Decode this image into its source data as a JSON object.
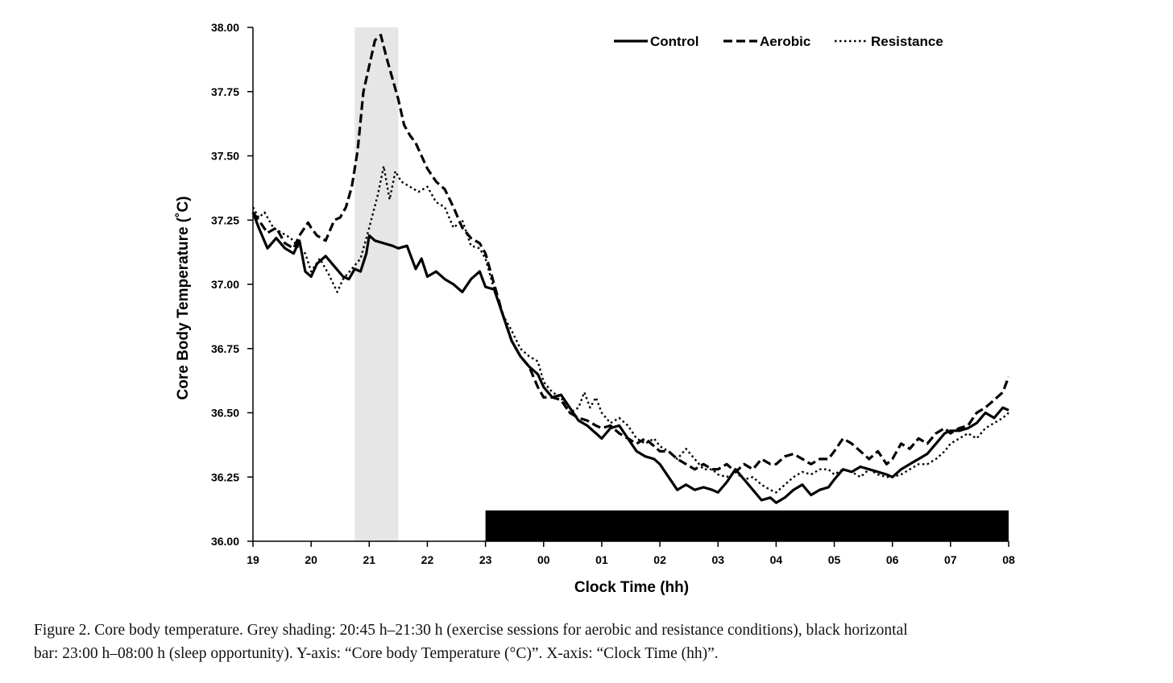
{
  "chart_data": {
    "type": "line",
    "title": "",
    "xlabel": "Clock Time (hh)",
    "ylabel": "Core Body Temperature (˚C)",
    "ylim": [
      36.0,
      38.0
    ],
    "yticks": [
      "38.00",
      "37.75",
      "37.50",
      "37.25",
      "37.00",
      "36.75",
      "36.50",
      "36.25",
      "36.00"
    ],
    "xlim": [
      19,
      32
    ],
    "xticks": [
      "19",
      "20",
      "21",
      "22",
      "23",
      "00",
      "01",
      "02",
      "03",
      "04",
      "05",
      "06",
      "07",
      "08"
    ],
    "grid": false,
    "legend_position": "top-right",
    "shaded_region": {
      "x_start": 20.75,
      "x_end": 21.5,
      "color": "#e6e6e6"
    },
    "sleep_bar": {
      "x_start": 23.0,
      "x_end": 32.0,
      "y_top": 36.12,
      "color": "#000000"
    },
    "series": [
      {
        "name": "Control",
        "style": "solid",
        "x": [
          19.0,
          19.1,
          19.25,
          19.4,
          19.55,
          19.7,
          19.8,
          19.9,
          20.0,
          20.1,
          20.25,
          20.4,
          20.55,
          20.65,
          20.75,
          20.85,
          20.95,
          21.0,
          21.1,
          21.25,
          21.4,
          21.5,
          21.65,
          21.8,
          21.9,
          22.0,
          22.15,
          22.3,
          22.45,
          22.6,
          22.75,
          22.9,
          23.0,
          23.15,
          23.3,
          23.45,
          23.6,
          23.75,
          23.9,
          24.0,
          24.15,
          24.3,
          24.45,
          24.6,
          24.75,
          24.9,
          25.0,
          25.15,
          25.3,
          25.45,
          25.6,
          25.75,
          25.9,
          26.0,
          26.15,
          26.3,
          26.45,
          26.6,
          26.75,
          26.9,
          27.0,
          27.15,
          27.3,
          27.45,
          27.6,
          27.75,
          27.9,
          28.0,
          28.15,
          28.3,
          28.45,
          28.6,
          28.75,
          28.9,
          29.0,
          29.15,
          29.3,
          29.45,
          29.6,
          29.75,
          29.9,
          30.0,
          30.15,
          30.3,
          30.45,
          30.6,
          30.75,
          30.9,
          31.0,
          31.15,
          31.3,
          31.45,
          31.6,
          31.75,
          31.9,
          32.0
        ],
        "values": [
          37.28,
          37.22,
          37.14,
          37.18,
          37.14,
          37.12,
          37.17,
          37.05,
          37.03,
          37.08,
          37.11,
          37.07,
          37.03,
          37.02,
          37.06,
          37.05,
          37.12,
          37.19,
          37.17,
          37.16,
          37.15,
          37.14,
          37.15,
          37.06,
          37.1,
          37.03,
          37.05,
          37.02,
          37.0,
          36.97,
          37.02,
          37.05,
          36.99,
          36.98,
          36.88,
          36.78,
          36.72,
          36.68,
          36.65,
          36.6,
          36.56,
          36.57,
          36.52,
          36.47,
          36.45,
          36.42,
          36.4,
          36.44,
          36.45,
          36.4,
          36.35,
          36.33,
          36.32,
          36.3,
          36.25,
          36.2,
          36.22,
          36.2,
          36.21,
          36.2,
          36.19,
          36.23,
          36.28,
          36.24,
          36.2,
          36.16,
          36.17,
          36.15,
          36.17,
          36.2,
          36.22,
          36.18,
          36.2,
          36.21,
          36.24,
          36.28,
          36.27,
          36.29,
          36.28,
          36.27,
          36.26,
          36.25,
          36.28,
          36.3,
          36.32,
          36.34,
          36.38,
          36.42,
          36.43,
          36.43,
          36.44,
          36.46,
          36.5,
          36.48,
          36.52,
          36.51
        ]
      },
      {
        "name": "Aerobic",
        "style": "dashed",
        "x": [
          19.0,
          19.1,
          19.25,
          19.4,
          19.55,
          19.7,
          19.8,
          19.95,
          20.0,
          20.1,
          20.25,
          20.4,
          20.5,
          20.6,
          20.7,
          20.8,
          20.9,
          21.0,
          21.1,
          21.2,
          21.3,
          21.4,
          21.5,
          21.6,
          21.7,
          21.8,
          21.9,
          22.0,
          22.15,
          22.3,
          22.45,
          22.6,
          22.75,
          22.9,
          23.0,
          23.15,
          23.3,
          23.45,
          23.6,
          23.75,
          23.9,
          24.0,
          24.15,
          24.3,
          24.45,
          24.6,
          24.75,
          24.9,
          25.0,
          25.15,
          25.3,
          25.45,
          25.6,
          25.75,
          25.9,
          26.0,
          26.15,
          26.3,
          26.45,
          26.6,
          26.75,
          26.9,
          27.0,
          27.15,
          27.3,
          27.45,
          27.6,
          27.75,
          27.9,
          28.0,
          28.15,
          28.3,
          28.45,
          28.6,
          28.75,
          28.9,
          29.0,
          29.15,
          29.3,
          29.45,
          29.6,
          29.75,
          29.9,
          30.0,
          30.15,
          30.3,
          30.45,
          30.6,
          30.75,
          30.9,
          31.0,
          31.15,
          31.3,
          31.45,
          31.6,
          31.75,
          31.9,
          32.0
        ],
        "values": [
          37.28,
          37.25,
          37.2,
          37.22,
          37.16,
          37.14,
          37.19,
          37.24,
          37.22,
          37.19,
          37.17,
          37.25,
          37.26,
          37.3,
          37.38,
          37.52,
          37.75,
          37.85,
          37.95,
          37.97,
          37.88,
          37.8,
          37.72,
          37.62,
          37.58,
          37.55,
          37.5,
          37.45,
          37.4,
          37.37,
          37.3,
          37.22,
          37.18,
          37.16,
          37.12,
          37.0,
          36.88,
          36.78,
          36.72,
          36.68,
          36.6,
          36.56,
          36.56,
          36.55,
          36.5,
          36.48,
          36.47,
          36.45,
          36.44,
          36.45,
          36.42,
          36.4,
          36.38,
          36.4,
          36.37,
          36.35,
          36.35,
          36.32,
          36.3,
          36.28,
          36.3,
          36.28,
          36.28,
          36.3,
          36.27,
          36.3,
          36.28,
          36.32,
          36.3,
          36.3,
          36.33,
          36.34,
          36.32,
          36.3,
          36.32,
          36.32,
          36.35,
          36.4,
          36.38,
          36.35,
          36.32,
          36.35,
          36.3,
          36.32,
          36.38,
          36.36,
          36.4,
          36.38,
          36.42,
          36.44,
          36.42,
          36.44,
          36.45,
          36.5,
          36.52,
          36.55,
          36.58,
          36.64
        ]
      },
      {
        "name": "Resistance",
        "style": "dotted",
        "x": [
          19.0,
          19.1,
          19.2,
          19.35,
          19.5,
          19.65,
          19.8,
          19.9,
          20.0,
          20.15,
          20.3,
          20.45,
          20.55,
          20.7,
          20.85,
          21.0,
          21.15,
          21.25,
          21.35,
          21.45,
          21.55,
          21.7,
          21.85,
          22.0,
          22.15,
          22.3,
          22.45,
          22.6,
          22.75,
          22.9,
          23.0,
          23.15,
          23.3,
          23.45,
          23.6,
          23.75,
          23.9,
          24.0,
          24.15,
          24.3,
          24.45,
          24.6,
          24.7,
          24.8,
          24.9,
          25.0,
          25.15,
          25.3,
          25.45,
          25.6,
          25.75,
          25.9,
          26.0,
          26.15,
          26.3,
          26.45,
          26.6,
          26.75,
          26.9,
          27.0,
          27.15,
          27.3,
          27.45,
          27.6,
          27.75,
          27.9,
          28.0,
          28.15,
          28.3,
          28.45,
          28.6,
          28.75,
          28.9,
          29.0,
          29.15,
          29.3,
          29.45,
          29.6,
          29.75,
          29.9,
          30.0,
          30.15,
          30.3,
          30.45,
          30.6,
          30.75,
          30.9,
          31.0,
          31.15,
          31.3,
          31.45,
          31.6,
          31.75,
          31.9,
          32.0
        ],
        "values": [
          37.3,
          37.26,
          37.28,
          37.22,
          37.2,
          37.18,
          37.14,
          37.12,
          37.05,
          37.1,
          37.04,
          36.97,
          37.02,
          37.06,
          37.1,
          37.22,
          37.35,
          37.46,
          37.33,
          37.44,
          37.4,
          37.38,
          37.36,
          37.38,
          37.32,
          37.3,
          37.22,
          37.25,
          37.15,
          37.14,
          37.1,
          36.98,
          36.88,
          36.82,
          36.75,
          36.72,
          36.7,
          36.62,
          36.58,
          36.56,
          36.5,
          36.52,
          36.58,
          36.52,
          36.56,
          36.5,
          36.46,
          36.48,
          36.45,
          36.4,
          36.38,
          36.4,
          36.37,
          36.35,
          36.32,
          36.36,
          36.32,
          36.28,
          36.28,
          36.26,
          36.25,
          36.27,
          36.24,
          36.25,
          36.22,
          36.2,
          36.19,
          36.22,
          36.25,
          36.27,
          36.26,
          36.28,
          36.28,
          36.26,
          36.28,
          36.27,
          36.25,
          36.28,
          36.26,
          36.25,
          36.25,
          36.26,
          36.28,
          36.3,
          36.3,
          36.32,
          36.35,
          36.38,
          36.4,
          36.42,
          36.4,
          36.44,
          36.46,
          36.48,
          36.5
        ]
      }
    ]
  },
  "caption": {
    "line1": "Figure 2. Core body temperature. Grey shading: 20:45 h–21:30 h (exercise sessions for aerobic and resistance conditions), black horizontal",
    "line2": "bar: 23:00 h–08:00 h (sleep opportunity). Y-axis: “Core body Temperature (°C)”. X-axis: “Clock Time (hh)”."
  }
}
